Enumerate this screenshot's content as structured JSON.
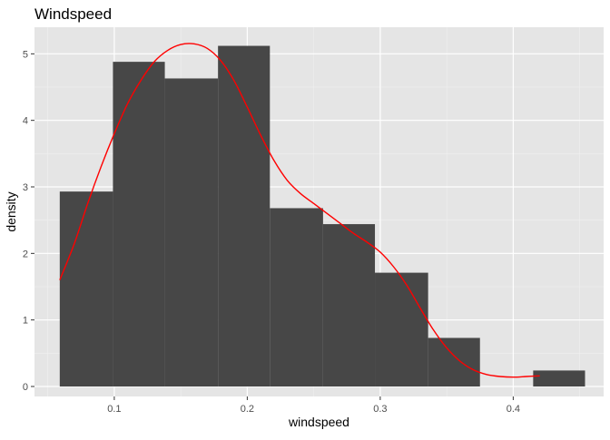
{
  "chart_data": {
    "type": "bar",
    "subtype": "histogram-with-density",
    "title": "Windspeed",
    "xlabel": "windspeed",
    "ylabel": "density",
    "xlim": [
      0.04,
      0.468
    ],
    "ylim": [
      -0.15,
      5.4
    ],
    "x_ticks": [
      0.1,
      0.2,
      0.3,
      0.4
    ],
    "x_tick_labels": [
      "0.1",
      "0.2",
      "0.3",
      "0.4"
    ],
    "y_ticks": [
      0,
      1,
      2,
      3,
      4,
      5
    ],
    "y_tick_labels": [
      "0",
      "1",
      "2",
      "3",
      "4",
      "5"
    ],
    "bins": [
      {
        "x0": 0.059,
        "x1": 0.099,
        "value": 2.93
      },
      {
        "x0": 0.099,
        "x1": 0.138,
        "value": 4.88
      },
      {
        "x0": 0.138,
        "x1": 0.178,
        "value": 4.63
      },
      {
        "x0": 0.178,
        "x1": 0.217,
        "value": 5.12
      },
      {
        "x0": 0.217,
        "x1": 0.257,
        "value": 2.68
      },
      {
        "x0": 0.257,
        "x1": 0.296,
        "value": 2.44
      },
      {
        "x0": 0.296,
        "x1": 0.336,
        "value": 1.71
      },
      {
        "x0": 0.336,
        "x1": 0.375,
        "value": 0.73
      },
      {
        "x0": 0.375,
        "x1": 0.415,
        "value": 0.0
      },
      {
        "x0": 0.415,
        "x1": 0.454,
        "value": 0.24
      }
    ],
    "density_curve": {
      "x": [
        0.059,
        0.07,
        0.08,
        0.09,
        0.1,
        0.11,
        0.12,
        0.13,
        0.14,
        0.15,
        0.16,
        0.17,
        0.18,
        0.19,
        0.2,
        0.21,
        0.22,
        0.23,
        0.24,
        0.25,
        0.26,
        0.27,
        0.28,
        0.29,
        0.3,
        0.31,
        0.32,
        0.33,
        0.34,
        0.35,
        0.36,
        0.37,
        0.38,
        0.39,
        0.4,
        0.41,
        0.42
      ],
      "y": [
        1.6,
        2.15,
        2.75,
        3.3,
        3.8,
        4.25,
        4.6,
        4.88,
        5.05,
        5.14,
        5.15,
        5.08,
        4.9,
        4.6,
        4.2,
        3.78,
        3.4,
        3.1,
        2.9,
        2.75,
        2.6,
        2.45,
        2.3,
        2.17,
        2.02,
        1.8,
        1.52,
        1.18,
        0.85,
        0.58,
        0.38,
        0.25,
        0.18,
        0.15,
        0.14,
        0.15,
        0.16
      ]
    },
    "grid": true,
    "legend": "none"
  },
  "colors": {
    "panel_background": "#e5e5e5",
    "grid_major": "#ffffff",
    "grid_minor": "#f0f0f0",
    "bar_fill": "#474747",
    "density_line": "#ff0000",
    "axis_text": "#4d4d4d",
    "title_text": "#000000"
  }
}
